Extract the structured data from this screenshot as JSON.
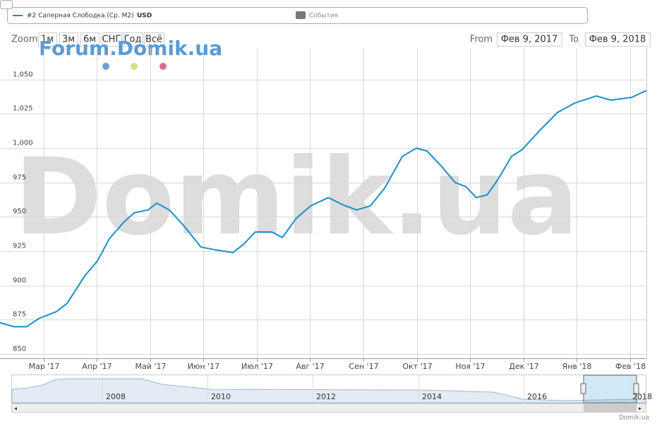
{
  "chart_data": {
    "type": "line",
    "legend": {
      "series_name": "#2 Саперная Слободка (Ср. М2)",
      "unit": "USD",
      "events": "События"
    },
    "zoom": {
      "label": "Zoom",
      "buttons": [
        "1м",
        "3м",
        "6м",
        "СНГ",
        "Год",
        "Всё"
      ]
    },
    "range": {
      "from_label": "From",
      "from": "Фев 9, 2017",
      "to_label": "To",
      "to": "Фев 9, 2018"
    },
    "watermarks": [
      "Forum.Domik.ua",
      "Domik.ua"
    ],
    "credit": "Domik.ua",
    "xlim": [
      0.18,
      12.31
    ],
    "xticks": [
      {
        "value": 1,
        "label": "Мар '17"
      },
      {
        "value": 2,
        "label": "Апр '17"
      },
      {
        "value": 3,
        "label": "Май '17"
      },
      {
        "value": 4,
        "label": "Июн '17"
      },
      {
        "value": 5,
        "label": "Июл '17"
      },
      {
        "value": 6,
        "label": "Авг '17"
      },
      {
        "value": 7,
        "label": "Сен '17"
      },
      {
        "value": 8,
        "label": "Окт '17"
      },
      {
        "value": 9,
        "label": "Ноя '17"
      },
      {
        "value": 10,
        "label": "Дек '17"
      },
      {
        "value": 11,
        "label": "Янв '18"
      },
      {
        "value": 12,
        "label": "Фев '18"
      }
    ],
    "ylim": [
      847,
      1073
    ],
    "yticks": [
      850,
      875,
      900,
      925,
      950,
      975,
      {
        "value": 1000,
        "label": "1,000"
      },
      {
        "value": 1025,
        "label": "1,025"
      },
      {
        "value": 1050,
        "label": "1,050"
      }
    ],
    "grid": true,
    "x": [
      0.18,
      0.44,
      0.68,
      0.91,
      1.24,
      1.44,
      1.77,
      2.01,
      2.23,
      2.5,
      2.7,
      2.96,
      3.12,
      3.36,
      3.62,
      3.95,
      4.22,
      4.55,
      4.75,
      4.97,
      5.28,
      5.48,
      5.74,
      6.01,
      6.34,
      6.6,
      6.87,
      7.13,
      7.4,
      7.73,
      7.99,
      8.19,
      8.46,
      8.72,
      8.92,
      9.12,
      9.32,
      9.52,
      9.78,
      9.98,
      10.31,
      10.64,
      10.97,
      11.37,
      11.64,
      12.03,
      12.31
    ],
    "series": [
      {
        "name": "#2 Саперная Слободка (Ср. М2)",
        "color": "#1a8fc9",
        "values": [
          873,
          870,
          870,
          876,
          881,
          887,
          907,
          918,
          934,
          946,
          953,
          955,
          960,
          955,
          944,
          928,
          926,
          924,
          930,
          939,
          939,
          935,
          949,
          958,
          964,
          959,
          955,
          958,
          971,
          994,
          1000,
          998,
          987,
          975,
          972,
          964,
          966,
          977,
          994,
          999,
          1013,
          1026,
          1033,
          1038,
          1035,
          1037,
          1042
        ]
      }
    ],
    "navigator": {
      "labels": [
        "2008",
        "2010",
        "2012",
        "2014",
        "2016",
        "2018"
      ]
    }
  }
}
